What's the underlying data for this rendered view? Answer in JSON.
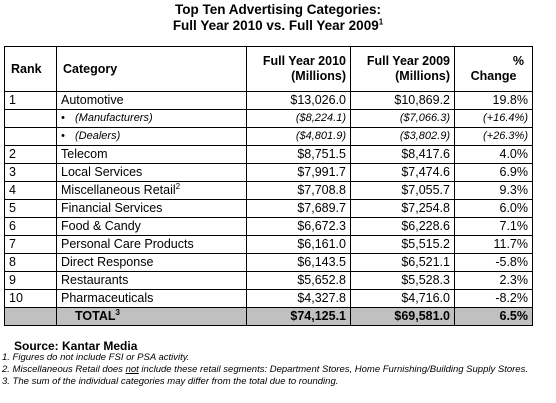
{
  "title": {
    "line1": "Top Ten Advertising Categories:",
    "line2": "Full Year 2010 vs. Full Year 2009",
    "line2_sup": "1"
  },
  "headers": {
    "rank": "Rank",
    "category": "Category",
    "fy2010": "Full Year 2010",
    "fy2010_unit": "(Millions)",
    "fy2009": "Full Year 2009",
    "fy2009_unit": "(Millions)",
    "pct": "%",
    "pct2": "Change"
  },
  "rows": [
    {
      "rank": "1",
      "category": "Automotive",
      "sup": "",
      "fy2010": "$13,026.0",
      "fy2009": "$10,869.2",
      "change": "19.8%"
    },
    {
      "rank": "",
      "category": "(Manufacturers)",
      "sup": "",
      "fy2010": "($8,224.1)",
      "fy2009": "($7,066.3)",
      "change": "(+16.4%)"
    },
    {
      "rank": "",
      "category": "(Dealers)",
      "sup": "",
      "fy2010": "($4,801.9)",
      "fy2009": "($3,802.9)",
      "change": "(+26.3%)"
    },
    {
      "rank": "2",
      "category": "Telecom",
      "sup": "",
      "fy2010": "$8,751.5",
      "fy2009": "$8,417.6",
      "change": "4.0%"
    },
    {
      "rank": "3",
      "category": "Local Services",
      "sup": "",
      "fy2010": "$7,991.7",
      "fy2009": "$7,474.6",
      "change": "6.9%"
    },
    {
      "rank": "4",
      "category": "Miscellaneous Retail",
      "sup": "2",
      "fy2010": "$7,708.8",
      "fy2009": "$7,055.7",
      "change": "9.3%"
    },
    {
      "rank": "5",
      "category": "Financial Services",
      "sup": "",
      "fy2010": "$7,689.7",
      "fy2009": "$7,254.8",
      "change": "6.0%"
    },
    {
      "rank": "6",
      "category": "Food & Candy",
      "sup": "",
      "fy2010": "$6,672.3",
      "fy2009": "$6,228.6",
      "change": "7.1%"
    },
    {
      "rank": "7",
      "category": "Personal Care Products",
      "sup": "",
      "fy2010": "$6,161.0",
      "fy2009": "$5,515.2",
      "change": "11.7%"
    },
    {
      "rank": "8",
      "category": "Direct Response",
      "sup": "",
      "fy2010": "$6,143.5",
      "fy2009": "$6,521.1",
      "change": "-5.8%"
    },
    {
      "rank": "9",
      "category": "Restaurants",
      "sup": "",
      "fy2010": "$5,652.8",
      "fy2009": "$5,528.3",
      "change": "2.3%"
    },
    {
      "rank": "10",
      "category": "Pharmaceuticals",
      "sup": "",
      "fy2010": "$4,327.8",
      "fy2009": "$4,716.0",
      "change": "-8.2%"
    }
  ],
  "total": {
    "label": "TOTAL",
    "sup": "3",
    "fy2010": "$74,125.1",
    "fy2009": "$69,581.0",
    "change": "6.5%"
  },
  "source": "Source: Kantar Media",
  "notes": {
    "n1": "1. Figures do not include FSI or PSA activity.",
    "n2_before": "2. Miscellaneous Retail does ",
    "n2_not": "not",
    "n2_after": " include these retail segments: Department Stores, Home Furnishing/Building Supply Stores.",
    "n3": "3. The sum of the individual categories may differ from the total due to rounding."
  },
  "bullet": "•"
}
